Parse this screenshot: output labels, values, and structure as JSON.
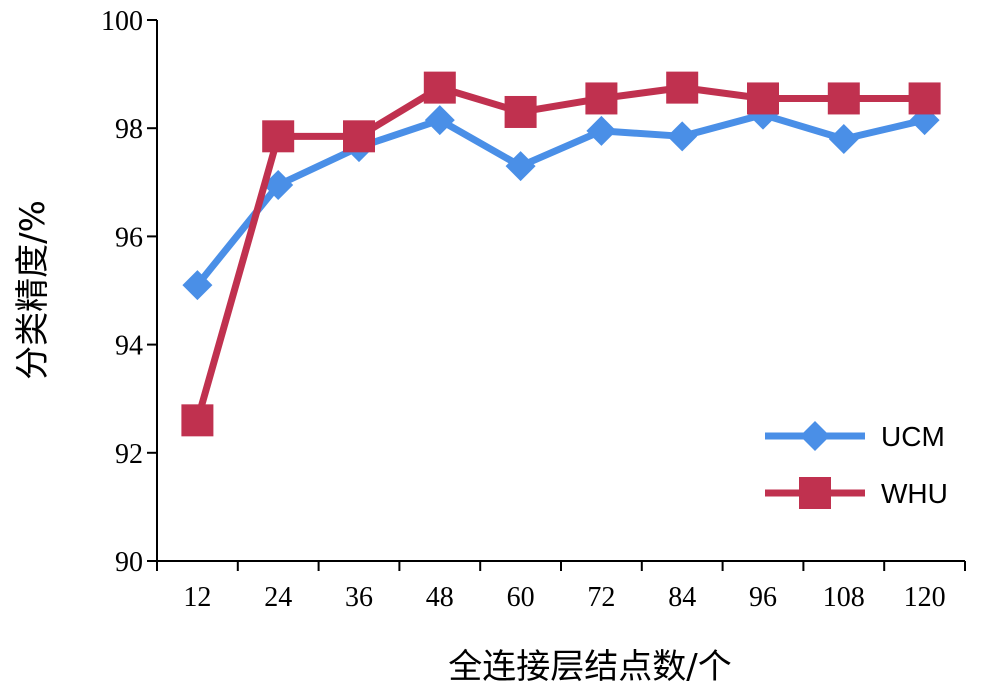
{
  "chart_data": {
    "type": "line",
    "title": "",
    "xlabel": "全连接层结点数/个",
    "ylabel": "分类精度/%",
    "categories": [
      "12",
      "24",
      "36",
      "48",
      "60",
      "72",
      "84",
      "96",
      "108",
      "120"
    ],
    "ylim": [
      90,
      100
    ],
    "yticks": [
      "90",
      "92",
      "94",
      "96",
      "98",
      "100"
    ],
    "grid": false,
    "legend_position": "lower-right",
    "series": [
      {
        "name": "UCM",
        "color": "#4A8FE7",
        "marker": "diamond",
        "values": [
          95.1,
          96.95,
          97.65,
          98.15,
          97.3,
          97.95,
          97.85,
          98.25,
          97.8,
          98.15
        ]
      },
      {
        "name": "WHU",
        "color": "#C0314F",
        "marker": "square",
        "values": [
          92.6,
          97.85,
          97.85,
          98.75,
          98.3,
          98.55,
          98.75,
          98.55,
          98.55,
          98.55
        ]
      }
    ]
  }
}
